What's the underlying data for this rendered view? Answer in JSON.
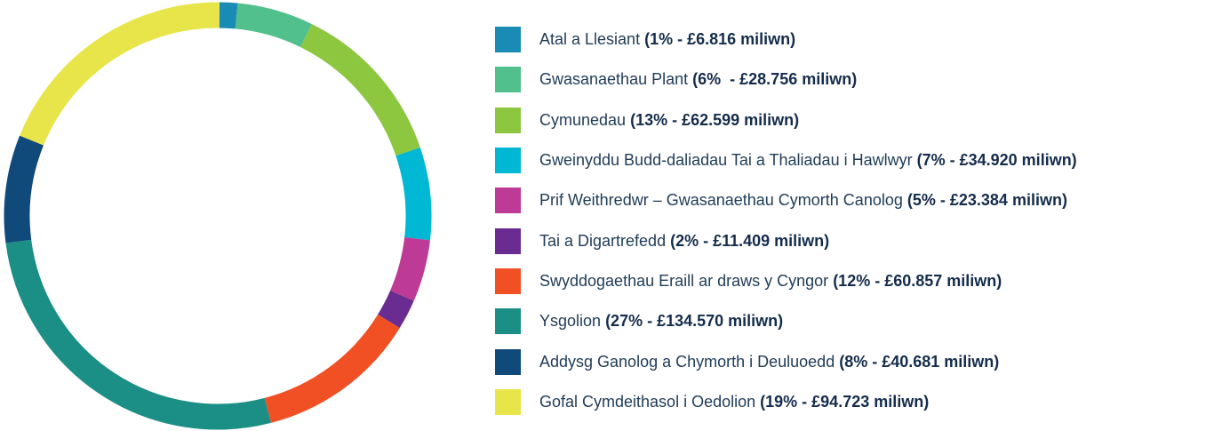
{
  "chart_data": {
    "type": "donut",
    "categories": [
      "Atal a Llesiant",
      "Gwasanaethau Plant",
      "Cymunedau",
      "Gweinyddu Budd-daliadau Tai a Thaliadau i Hawlwyr",
      "Prif Weithredwr – Gwasanaethau Cymorth Canolog",
      "Tai a Digartrefedd",
      "Swyddogaethau Eraill ar draws y Cyngor",
      "Ysgolion",
      "Addysg Ganolog a Chymorth i Deuluoedd",
      "Gofal Cymdeithasol i Oedolion"
    ],
    "values": [
      6.816,
      28.756,
      62.599,
      34.92,
      23.384,
      11.409,
      60.857,
      134.57,
      40.681,
      94.723
    ],
    "value_labels": [
      "(1% - £6.816 miliwn)",
      "(6%  - £28.756 miliwn)",
      "(13% - £62.599 miliwn)",
      "(7% - £34.920 miliwn)",
      "(5% - £23.384 miliwn)",
      "(2% - £11.409 miliwn)",
      "(12% - £60.857 miliwn)",
      "(27% - £134.570 miliwn)",
      "(8% - £40.681 miliwn)",
      "(19% - £94.723 miliwn)"
    ],
    "colors": [
      "#1a8bb5",
      "#52c08c",
      "#8dc63f",
      "#00b8d4",
      "#bd3b96",
      "#6b2c91",
      "#f15025",
      "#1b8f85",
      "#104a7a",
      "#e8e54a"
    ]
  }
}
